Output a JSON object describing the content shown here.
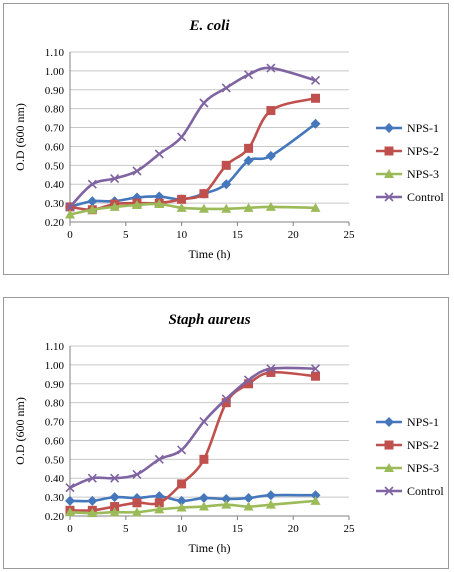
{
  "chart_data": [
    {
      "type": "line",
      "title": "E. coli",
      "xlabel": "Time (h)",
      "ylabel": "O.D (600 nm)",
      "xlim": [
        0,
        25
      ],
      "ylim": [
        0.2,
        1.1
      ],
      "xticks": [
        "0",
        "5",
        "10",
        "15",
        "20",
        "25"
      ],
      "yticks": [
        "0.20",
        "0.30",
        "0.40",
        "0.50",
        "0.60",
        "0.70",
        "0.80",
        "0.90",
        "1.00",
        "1.10"
      ],
      "grid": "horizontal",
      "legend": "right",
      "x": [
        0,
        2,
        4,
        6,
        8,
        10,
        12,
        14,
        16,
        18,
        22
      ],
      "series": [
        {
          "name": "NPS-1",
          "color": "#4477bb",
          "marker": "diamond",
          "values": [
            0.28,
            0.31,
            0.31,
            0.33,
            0.335,
            0.32,
            0.35,
            0.4,
            0.525,
            0.55,
            0.72
          ]
        },
        {
          "name": "NPS-2",
          "color": "#c0504d",
          "marker": "square",
          "values": [
            0.28,
            0.265,
            0.295,
            0.3,
            0.3,
            0.32,
            0.35,
            0.5,
            0.59,
            0.79,
            0.855
          ]
        },
        {
          "name": "NPS-3",
          "color": "#9bbb59",
          "marker": "triangle",
          "values": [
            0.24,
            0.265,
            0.28,
            0.29,
            0.295,
            0.275,
            0.27,
            0.27,
            0.275,
            0.28,
            0.275
          ]
        },
        {
          "name": "Control",
          "color": "#8064a2",
          "marker": "x",
          "values": [
            0.28,
            0.4,
            0.43,
            0.47,
            0.56,
            0.65,
            0.83,
            0.91,
            0.98,
            1.015,
            0.95
          ]
        }
      ]
    },
    {
      "type": "line",
      "title": "Staph aureus",
      "xlabel": "Time (h)",
      "ylabel": "O.D (600 nm)",
      "xlim": [
        0,
        25
      ],
      "ylim": [
        0.2,
        1.1
      ],
      "xticks": [
        "0",
        "5",
        "10",
        "15",
        "20",
        "25"
      ],
      "yticks": [
        "0.20",
        "0.30",
        "0.40",
        "0.50",
        "0.60",
        "0.70",
        "0.80",
        "0.90",
        "1.00",
        "1.10"
      ],
      "grid": "horizontal",
      "legend": "right",
      "x": [
        0,
        2,
        4,
        6,
        8,
        10,
        12,
        14,
        16,
        18,
        22
      ],
      "series": [
        {
          "name": "NPS-1",
          "color": "#4477bb",
          "marker": "diamond",
          "values": [
            0.28,
            0.28,
            0.3,
            0.295,
            0.305,
            0.28,
            0.295,
            0.29,
            0.295,
            0.31,
            0.31
          ]
        },
        {
          "name": "NPS-2",
          "color": "#c0504d",
          "marker": "square",
          "values": [
            0.23,
            0.23,
            0.25,
            0.27,
            0.27,
            0.37,
            0.5,
            0.8,
            0.9,
            0.96,
            0.94
          ]
        },
        {
          "name": "NPS-3",
          "color": "#9bbb59",
          "marker": "triangle",
          "values": [
            0.22,
            0.215,
            0.22,
            0.22,
            0.235,
            0.245,
            0.25,
            0.26,
            0.25,
            0.26,
            0.28
          ]
        },
        {
          "name": "Control",
          "color": "#8064a2",
          "marker": "x",
          "values": [
            0.35,
            0.4,
            0.4,
            0.42,
            0.5,
            0.55,
            0.7,
            0.82,
            0.92,
            0.98,
            0.98
          ]
        }
      ]
    }
  ]
}
